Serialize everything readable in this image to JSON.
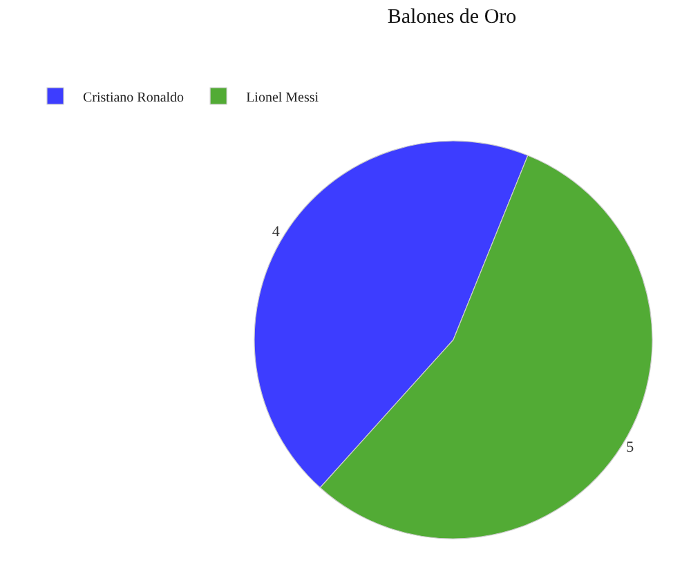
{
  "chart_data": {
    "type": "pie",
    "title": "Balones de Oro",
    "categories": [
      "Cristiano Ronaldo",
      "Lionel Messi"
    ],
    "values": [
      4,
      5
    ],
    "colors": [
      "#3d3dff",
      "#52ab35"
    ],
    "data_labels": true,
    "legend": "top left"
  }
}
